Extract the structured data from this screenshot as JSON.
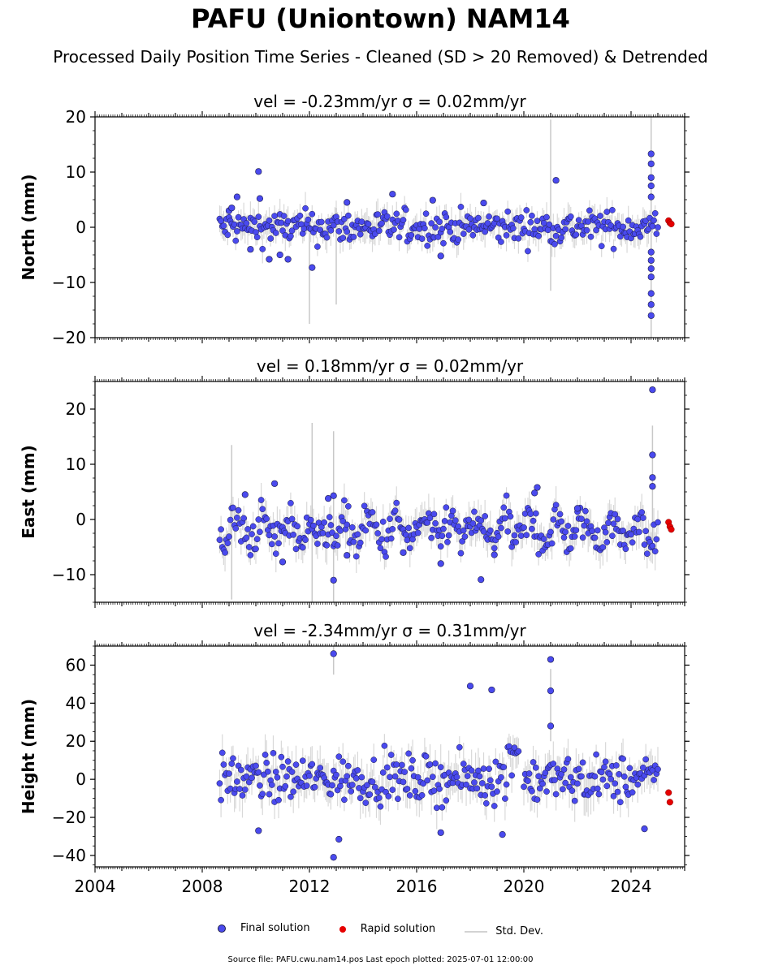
{
  "title": "PAFU (Uniontown) NAM14",
  "subtitle": "Processed Daily Position Time Series - Cleaned (SD > 20 Removed) & Detrended",
  "legend": {
    "final": "Final solution",
    "rapid": "Rapid solution",
    "stddev": "Std. Dev."
  },
  "footer": "Source file: PAFU.cwu.nam14.pos  Last epoch plotted: 2025-07-01 12:00:00",
  "colors": {
    "final": "#4a4aee",
    "rapid": "#e60000",
    "stddev": "#c8c8c8",
    "marker_edge": "#1a1a4a"
  },
  "chart_data": [
    {
      "type": "scatter",
      "title": "vel = -0.23mm/yr   σ = 0.02mm/yr",
      "ylabel": "North (mm)",
      "xlim": [
        2004,
        2026
      ],
      "ylim": [
        -20,
        20
      ],
      "yticks": [
        -20,
        -10,
        0,
        10,
        20
      ],
      "ytick_labels": [
        "−20",
        "−10",
        "0",
        "10",
        "20"
      ],
      "x_tick_labels_shown": false,
      "data_start": 2008.65,
      "data_end": 2025.0,
      "typical_scatter_mm": 1.5,
      "outliers": [
        [
          2009.0,
          3.0
        ],
        [
          2009.1,
          3.5
        ],
        [
          2009.3,
          5.5
        ],
        [
          2009.8,
          -4.0
        ],
        [
          2010.1,
          10.1
        ],
        [
          2010.15,
          5.2
        ],
        [
          2010.5,
          -5.8
        ],
        [
          2010.9,
          -5.0
        ],
        [
          2011.2,
          -5.8
        ],
        [
          2012.1,
          -7.3
        ],
        [
          2013.4,
          4.5
        ],
        [
          2015.1,
          6.0
        ],
        [
          2016.6,
          4.9
        ],
        [
          2016.9,
          -5.2
        ],
        [
          2018.5,
          4.4
        ],
        [
          2021.2,
          8.5
        ],
        [
          2024.75,
          13.3
        ],
        [
          2024.75,
          11.5
        ],
        [
          2024.75,
          9.0
        ],
        [
          2024.75,
          7.5
        ],
        [
          2024.75,
          5.5
        ],
        [
          2024.75,
          -4.5
        ],
        [
          2024.75,
          -6.0
        ],
        [
          2024.75,
          -7.5
        ],
        [
          2024.75,
          -9.0
        ],
        [
          2024.75,
          -12.0
        ],
        [
          2024.75,
          -14.0
        ],
        [
          2024.75,
          -16.0
        ]
      ],
      "rapid": [
        [
          2025.4,
          1.2
        ],
        [
          2025.45,
          0.8
        ],
        [
          2025.5,
          0.6
        ]
      ],
      "tall_error_bars": [
        [
          2012.0,
          -17.5,
          2.0
        ],
        [
          2013.0,
          -14.0,
          3.5
        ],
        [
          2021.0,
          -11.5,
          19.5
        ],
        [
          2024.75,
          -20.0,
          20.0
        ]
      ]
    },
    {
      "type": "scatter",
      "title": "vel = 0.18mm/yr   σ = 0.02mm/yr",
      "ylabel": "East (mm)",
      "xlim": [
        2004,
        2026
      ],
      "ylim": [
        -15,
        25
      ],
      "yticks": [
        -10,
        0,
        10,
        20
      ],
      "ytick_labels": [
        "−10",
        "0",
        "10",
        "20"
      ],
      "x_tick_labels_shown": false,
      "data_start": 2008.65,
      "data_end": 2025.0,
      "typical_scatter_mm": 1.8,
      "seasonal_amplitude_mm": 1.8,
      "level_mm": -2.0,
      "outliers": [
        [
          2009.6,
          4.5
        ],
        [
          2010.7,
          6.5
        ],
        [
          2011.0,
          -7.7
        ],
        [
          2012.7,
          3.8
        ],
        [
          2012.9,
          4.3
        ],
        [
          2012.9,
          -11.0
        ],
        [
          2013.4,
          -6.5
        ],
        [
          2015.5,
          -6.0
        ],
        [
          2016.9,
          -8.0
        ],
        [
          2018.4,
          -10.9
        ],
        [
          2018.9,
          -6.4
        ],
        [
          2020.4,
          4.8
        ],
        [
          2020.5,
          5.8
        ],
        [
          2022.0,
          2.0
        ],
        [
          2024.8,
          23.5
        ],
        [
          2024.8,
          11.7
        ],
        [
          2024.8,
          7.6
        ],
        [
          2024.8,
          6.0
        ]
      ],
      "rapid": [
        [
          2025.4,
          -0.5
        ],
        [
          2025.45,
          -1.3
        ],
        [
          2025.5,
          -1.8
        ]
      ],
      "tall_error_bars": [
        [
          2009.1,
          -14.5,
          13.5
        ],
        [
          2012.1,
          -15.0,
          17.5
        ],
        [
          2012.9,
          -15.0,
          16.0
        ],
        [
          2024.8,
          -4.0,
          17.0
        ]
      ]
    },
    {
      "type": "scatter",
      "title": "vel = -2.34mm/yr   σ = 0.31mm/yr",
      "ylabel": "Height (mm)",
      "xlim": [
        2004,
        2026
      ],
      "ylim": [
        -46,
        70
      ],
      "yticks": [
        -40,
        -20,
        0,
        20,
        40,
        60
      ],
      "ytick_labels": [
        "−40",
        "−20",
        "0",
        "20",
        "40",
        "60"
      ],
      "xticks": [
        2004,
        2008,
        2012,
        2016,
        2020,
        2024
      ],
      "xtick_labels": [
        "2004",
        "2008",
        "2012",
        "2016",
        "2020",
        "2024"
      ],
      "x_tick_labels_shown": true,
      "data_start": 2008.65,
      "data_end": 2025.0,
      "typical_scatter_mm": 6.0,
      "gap": [
        2019.8,
        2019.95
      ],
      "offset_segments": [
        [
          2019.35,
          2019.8,
          18.0
        ]
      ],
      "outliers": [
        [
          2012.9,
          66.0
        ],
        [
          2018.0,
          49.0
        ],
        [
          2018.8,
          47.0
        ],
        [
          2021.0,
          63.0
        ],
        [
          2021.0,
          46.5
        ],
        [
          2021.0,
          28.0
        ],
        [
          2012.9,
          -41.0
        ],
        [
          2013.1,
          -31.5
        ],
        [
          2016.9,
          -28.0
        ],
        [
          2019.2,
          -29.0
        ],
        [
          2010.1,
          -27.0
        ],
        [
          2024.5,
          -26.0
        ]
      ],
      "rapid": [
        [
          2025.4,
          -7.0
        ],
        [
          2025.45,
          -12.0
        ]
      ],
      "tall_error_bars": [
        [
          2021.0,
          20.0,
          58.0
        ],
        [
          2012.9,
          55.0,
          70.0
        ]
      ]
    }
  ]
}
